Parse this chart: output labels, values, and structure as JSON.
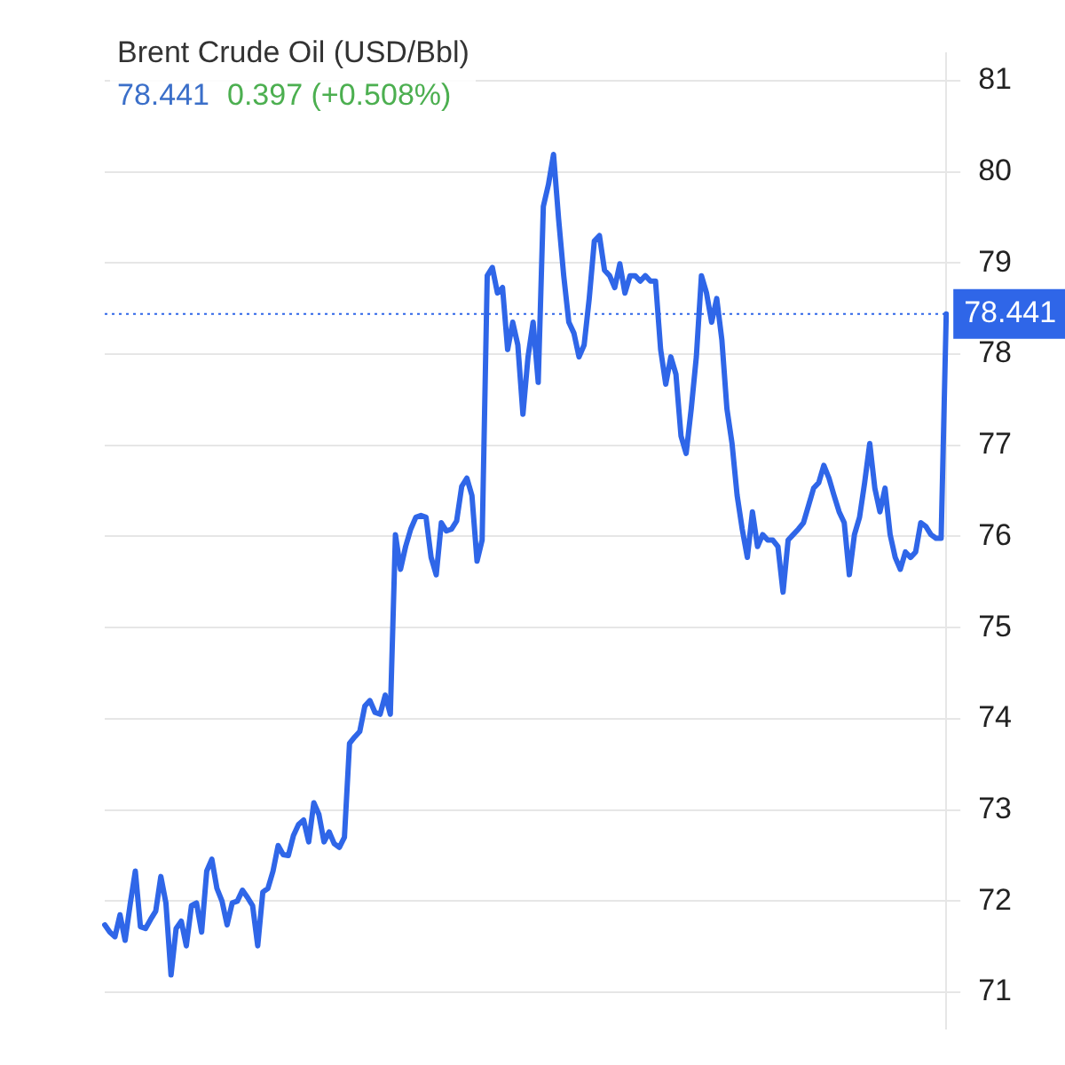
{
  "chart_data": {
    "type": "line",
    "title": "Brent Crude Oil (USD/Bbl)",
    "subtitle": "78.441",
    "annotations": [
      "0.397 (+0.508%)"
    ],
    "categories": [
      null,
      null,
      null,
      null,
      null,
      null,
      null,
      null,
      null,
      null,
      null,
      null,
      null,
      null,
      null,
      null,
      null,
      null,
      null,
      null,
      null,
      null,
      null,
      null,
      null,
      null,
      null,
      null,
      null,
      null,
      null,
      null,
      null,
      null,
      null,
      null,
      null,
      null,
      null,
      null,
      null,
      null,
      null,
      null,
      null,
      null,
      null,
      null,
      null,
      null,
      null,
      null,
      null,
      null,
      null,
      null,
      null,
      null,
      null,
      null,
      null,
      null,
      null,
      null,
      null,
      null,
      null,
      null,
      null,
      null,
      null,
      null,
      null,
      null,
      null,
      null,
      null,
      null,
      null,
      null,
      null,
      null,
      null,
      null,
      null,
      null,
      null,
      null,
      null,
      null,
      null,
      null,
      null,
      null,
      null,
      null,
      null,
      null,
      null,
      null,
      null,
      null,
      null,
      null,
      null,
      null,
      null,
      null,
      null,
      null,
      null,
      null,
      null,
      null,
      null,
      null,
      null,
      null,
      null,
      null,
      null,
      null,
      null,
      null,
      null,
      null,
      null,
      null,
      null,
      null,
      null,
      null,
      null,
      null,
      null,
      null,
      null,
      null,
      null,
      null,
      null,
      null,
      null,
      null,
      null,
      null,
      null,
      null,
      null,
      null,
      null,
      null,
      null,
      null,
      null,
      null,
      null,
      null,
      null,
      null,
      null,
      null,
      null,
      null,
      null,
      null
    ],
    "series": [
      {
        "color": "#2f66e8",
        "values": [
          71.74,
          71.66,
          71.61,
          71.85,
          71.57,
          71.97,
          72.33,
          71.72,
          71.7,
          71.8,
          71.89,
          72.27,
          71.98,
          71.19,
          71.7,
          71.78,
          71.51,
          71.95,
          71.98,
          71.66,
          72.33,
          72.46,
          72.14,
          72.0,
          71.74,
          71.98,
          72.0,
          72.12,
          72.04,
          71.95,
          71.51,
          72.1,
          72.14,
          72.33,
          72.61,
          72.51,
          72.5,
          72.72,
          72.84,
          72.89,
          72.65,
          73.08,
          72.95,
          72.65,
          72.76,
          72.63,
          72.59,
          72.7,
          73.73,
          73.8,
          73.86,
          74.14,
          74.2,
          74.07,
          74.05,
          74.26,
          74.05,
          76.02,
          75.64,
          75.89,
          76.08,
          76.21,
          76.23,
          76.21,
          75.77,
          75.58,
          76.15,
          76.06,
          76.08,
          76.17,
          76.55,
          76.64,
          76.45,
          75.73,
          75.96,
          78.86,
          78.95,
          78.67,
          78.73,
          78.05,
          78.35,
          78.1,
          77.34,
          77.97,
          78.35,
          77.69,
          79.62,
          79.86,
          80.19,
          79.48,
          78.86,
          78.35,
          78.23,
          77.97,
          78.1,
          78.61,
          79.24,
          79.3,
          78.92,
          78.86,
          78.73,
          78.99,
          78.67,
          78.86,
          78.86,
          78.8,
          78.86,
          78.8,
          78.8,
          78.05,
          77.67,
          77.97,
          77.78,
          77.1,
          76.91,
          77.4,
          77.97,
          78.86,
          78.67,
          78.35,
          78.61,
          78.16,
          77.4,
          77.02,
          76.45,
          76.08,
          75.77,
          76.27,
          75.89,
          76.02,
          75.96,
          75.96,
          75.89,
          75.39,
          75.96,
          76.02,
          76.08,
          76.15,
          76.34,
          76.53,
          76.59,
          76.78,
          76.64,
          76.45,
          76.27,
          76.15,
          75.58,
          76.02,
          76.21,
          76.59,
          77.02,
          76.53,
          76.27,
          76.53,
          76.02,
          75.77,
          75.64,
          75.83,
          75.77,
          75.83,
          76.15,
          76.11,
          76.02,
          75.98,
          75.98,
          78.441
        ]
      }
    ],
    "ylim": [
      70.6,
      81.3
    ],
    "yticks": [
      71,
      72,
      73,
      74,
      75,
      76,
      77,
      78,
      79,
      80,
      81
    ],
    "grid": "y",
    "legend": false,
    "marker": "none",
    "line_style": "solid",
    "ref_lines": [
      {
        "axis": "y",
        "value": 78.441,
        "label": "78.441",
        "color": "#2f66e8",
        "line_style": "dotted"
      }
    ]
  }
}
